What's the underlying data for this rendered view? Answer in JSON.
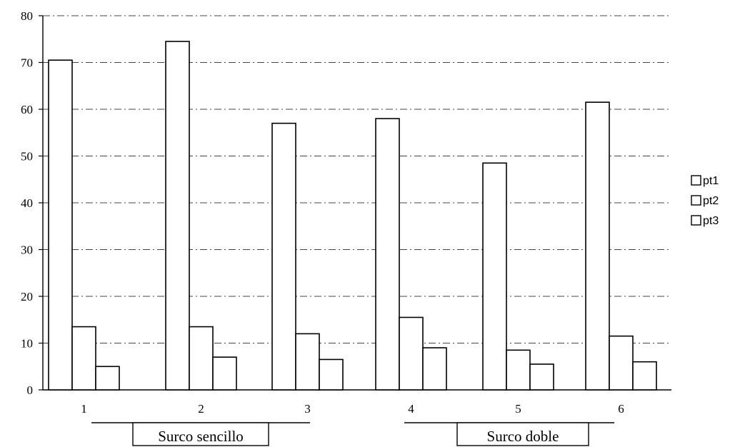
{
  "chart_data": {
    "type": "bar",
    "categories": [
      "1",
      "2",
      "3",
      "4",
      "5",
      "6"
    ],
    "series": [
      {
        "name": "pt1",
        "values": [
          70.5,
          74.5,
          57,
          58,
          48.5,
          61.5
        ]
      },
      {
        "name": "pt2",
        "values": [
          13.5,
          13.5,
          12,
          15.5,
          8.5,
          11.5
        ]
      },
      {
        "name": "pt3",
        "values": [
          5,
          7,
          6.5,
          9,
          5.5,
          6
        ]
      }
    ],
    "ylim": [
      0,
      80
    ],
    "yticks": [
      "0",
      "10",
      "20",
      "30",
      "40",
      "50",
      "60",
      "70",
      "80"
    ],
    "grid": true,
    "legend": "right",
    "groups": [
      {
        "label": "Surco sencillo",
        "categories": [
          "1",
          "2",
          "3"
        ]
      },
      {
        "label": "Surco doble",
        "categories": [
          "4",
          "5",
          "6"
        ]
      }
    ],
    "colors": {
      "bar_fill": "#ffffff",
      "stroke": "#000000",
      "grid": "#444444"
    }
  }
}
